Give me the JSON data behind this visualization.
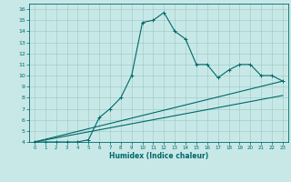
{
  "xlabel": "Humidex (Indice chaleur)",
  "background_color": "#c8e8e8",
  "grid_color": "#98c8c0",
  "line_color": "#006868",
  "xlim": [
    -0.5,
    23.5
  ],
  "ylim": [
    4,
    16.5
  ],
  "xticks": [
    0,
    1,
    2,
    3,
    4,
    5,
    6,
    7,
    8,
    9,
    10,
    11,
    12,
    13,
    14,
    15,
    16,
    17,
    18,
    19,
    20,
    21,
    22,
    23
  ],
  "yticks": [
    4,
    5,
    6,
    7,
    8,
    9,
    10,
    11,
    12,
    13,
    14,
    15,
    16
  ],
  "series0_x": [
    0,
    1,
    2,
    3,
    4,
    5,
    6,
    7,
    8,
    9,
    10,
    11,
    12,
    13,
    14,
    15,
    16,
    17,
    18,
    19,
    20,
    21,
    22,
    23
  ],
  "series0_y": [
    4,
    4,
    4,
    4,
    4,
    4.2,
    6.2,
    7.0,
    8.0,
    10.0,
    14.8,
    15.0,
    15.7,
    14.0,
    13.3,
    11.0,
    11.0,
    9.8,
    10.5,
    11.0,
    11.0,
    10.0,
    10.0,
    9.5
  ],
  "series1_x": [
    0,
    23
  ],
  "series1_y": [
    4,
    9.5
  ],
  "series2_x": [
    0,
    23
  ],
  "series2_y": [
    4,
    8.2
  ],
  "figwidth": 3.2,
  "figheight": 2.0,
  "dpi": 100
}
